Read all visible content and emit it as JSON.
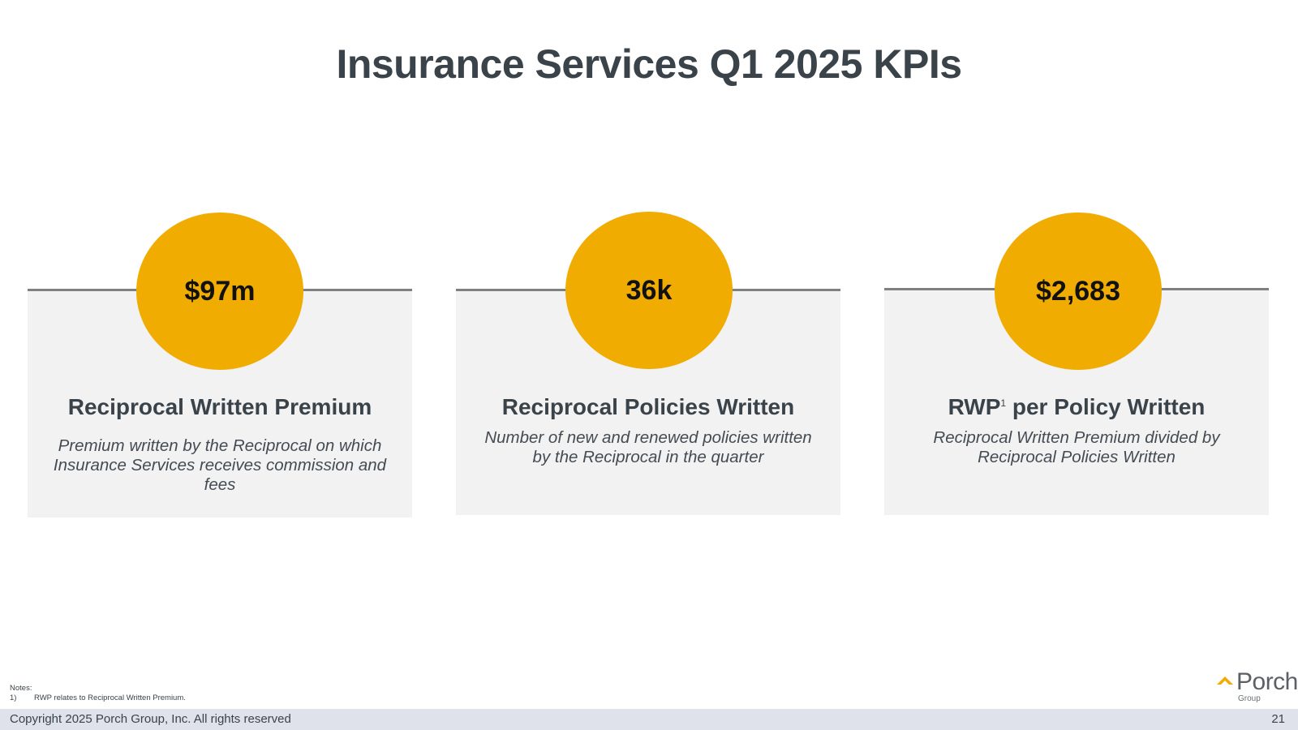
{
  "slide": {
    "title": "Insurance Services Q1 2025 KPIs"
  },
  "kpis": [
    {
      "value": "$97m",
      "heading": "Reciprocal Written Premium",
      "description": "Premium written by the Reciprocal on which Insurance Services receives commission and fees"
    },
    {
      "value": "36k",
      "heading": "Reciprocal Policies Written",
      "description": "Number of new and renewed policies written by the Reciprocal in the quarter"
    },
    {
      "value": "$2,683",
      "heading_main": "RWP",
      "heading_sup": "1",
      "heading_rest": " per Policy Written",
      "description": "Reciprocal Written Premium divided by Reciprocal Policies Written"
    }
  ],
  "notes": {
    "label": "Notes:",
    "items": [
      {
        "num": "1)",
        "text": "RWP relates to Reciprocal Written Premium."
      }
    ]
  },
  "logo": {
    "name": "Porch",
    "sub": "Group"
  },
  "footer": {
    "copyright": "Copyright 2025 Porch Group, Inc. All rights reserved",
    "page": "21"
  },
  "colors": {
    "accent": "#f0ac00",
    "card_bg": "#f2f2f2",
    "text": "#3b434a",
    "footer_bg": "#dfe2ea"
  }
}
